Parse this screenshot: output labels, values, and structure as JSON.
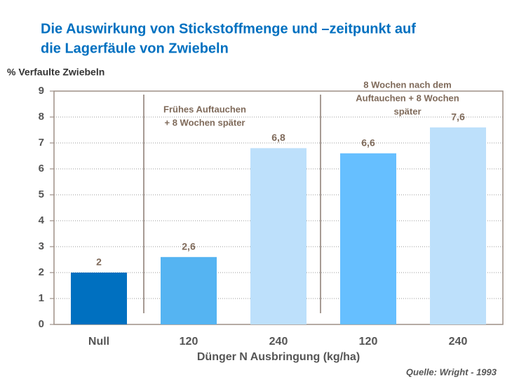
{
  "chart_data": {
    "type": "bar",
    "title": [
      "Die Auswirkung von Stickstoffmenge und –zeitpunkt auf",
      "die Lagerfäule von Zwiebeln"
    ],
    "y_label": "% Verfaulte Zwiebeln",
    "x_label": "Dünger N Ausbringung (kg/ha)",
    "categories": [
      "Null",
      "120",
      "240",
      "120",
      "240"
    ],
    "values": [
      2,
      2.6,
      6.8,
      6.6,
      7.6
    ],
    "value_labels": [
      "2",
      "2,6",
      "6,8",
      "6,6",
      "7,6"
    ],
    "colors": [
      "#0070c0",
      "#55b4f2",
      "#bde0fb",
      "#66bfff",
      "#bde0fb"
    ],
    "ylim": [
      0,
      9
    ],
    "yticks": [
      0,
      1,
      2,
      3,
      4,
      5,
      6,
      7,
      8,
      9
    ],
    "grid": true,
    "annotations": [
      [
        "Frühes Auftauchen",
        "+ 8 Wochen später"
      ],
      [
        "8 Wochen nach dem",
        "Auftauchen + 8 Wochen",
        "später"
      ]
    ],
    "source": "Quelle: Wright - 1993"
  }
}
